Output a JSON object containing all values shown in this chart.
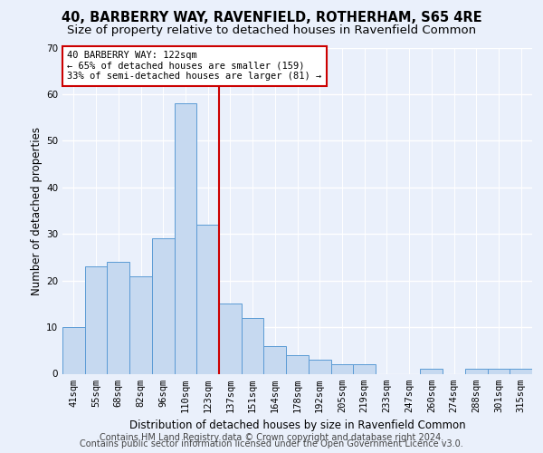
{
  "title1": "40, BARBERRY WAY, RAVENFIELD, ROTHERHAM, S65 4RE",
  "title2": "Size of property relative to detached houses in Ravenfield Common",
  "xlabel": "Distribution of detached houses by size in Ravenfield Common",
  "ylabel": "Number of detached properties",
  "categories": [
    "41sqm",
    "55sqm",
    "68sqm",
    "82sqm",
    "96sqm",
    "110sqm",
    "123sqm",
    "137sqm",
    "151sqm",
    "164sqm",
    "178sqm",
    "192sqm",
    "205sqm",
    "219sqm",
    "233sqm",
    "247sqm",
    "260sqm",
    "274sqm",
    "288sqm",
    "301sqm",
    "315sqm"
  ],
  "values": [
    10,
    23,
    24,
    21,
    29,
    58,
    32,
    15,
    12,
    6,
    4,
    3,
    2,
    2,
    0,
    0,
    1,
    0,
    1,
    1,
    1
  ],
  "bar_color": "#c6d9f0",
  "bar_edge_color": "#5b9bd5",
  "highlight_index": 6,
  "highlight_line_color": "#cc0000",
  "ylim": [
    0,
    70
  ],
  "yticks": [
    0,
    10,
    20,
    30,
    40,
    50,
    60,
    70
  ],
  "annotation_box_text": "40 BARBERRY WAY: 122sqm\n← 65% of detached houses are smaller (159)\n33% of semi-detached houses are larger (81) →",
  "annotation_box_color": "#ffffff",
  "annotation_box_edge_color": "#cc0000",
  "footer1": "Contains HM Land Registry data © Crown copyright and database right 2024.",
  "footer2": "Contains public sector information licensed under the Open Government Licence v3.0.",
  "background_color": "#eaf0fb",
  "grid_color": "#ffffff",
  "title1_fontsize": 10.5,
  "title2_fontsize": 9.5,
  "xlabel_fontsize": 8.5,
  "ylabel_fontsize": 8.5,
  "tick_fontsize": 7.5,
  "footer_fontsize": 7.0,
  "annot_fontsize": 7.5
}
